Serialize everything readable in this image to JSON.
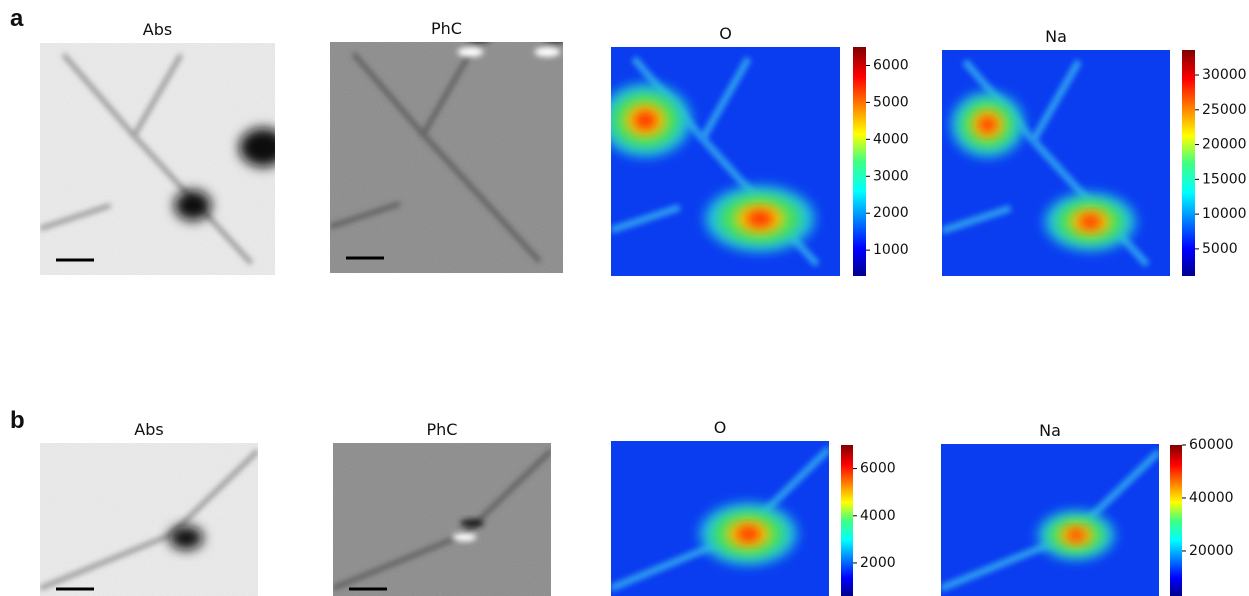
{
  "panels": [
    {
      "label": "a",
      "images": [
        {
          "title": "Abs"
        },
        {
          "title": "PhC"
        },
        {
          "title": "O",
          "clim": [
            300,
            6500
          ],
          "ticks": [
            1000,
            2000,
            3000,
            4000,
            5000,
            6000
          ]
        },
        {
          "title": "Na",
          "clim": [
            1100,
            33600
          ],
          "ticks": [
            5000,
            10000,
            15000,
            20000,
            25000,
            30000
          ]
        }
      ]
    },
    {
      "label": "b",
      "images": [
        {
          "title": "Abs"
        },
        {
          "title": "PhC"
        },
        {
          "title": "O",
          "clim": [
            600,
            7000
          ],
          "ticks": [
            2000,
            4000,
            6000
          ]
        },
        {
          "title": "Na",
          "clim": [
            3000,
            60000
          ],
          "ticks": [
            20000,
            40000,
            60000
          ]
        }
      ]
    }
  ]
}
